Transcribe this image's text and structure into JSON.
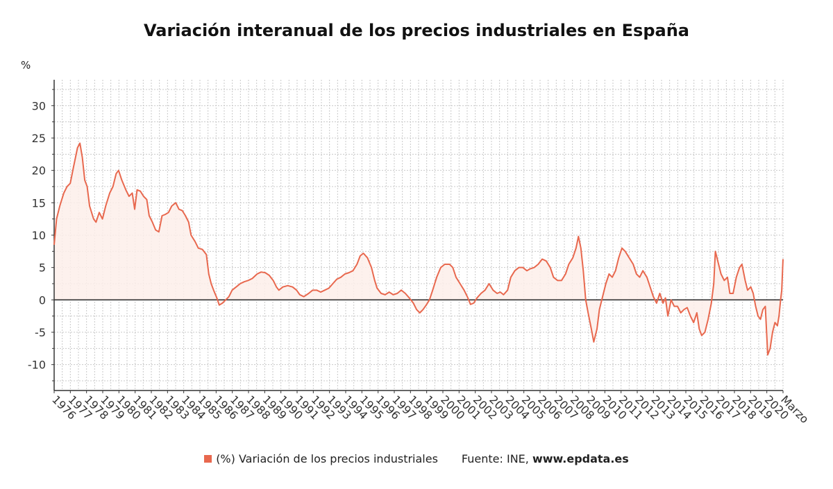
{
  "title": "Variación interanual de los precios industriales en España",
  "legend": {
    "series_label": "(%) Variación de los precios industriales",
    "source_prefix": "Fuente: INE,",
    "source_host": "www.epdata.es"
  },
  "colors": {
    "line": "#e8684e",
    "fill": "#fdeeea",
    "grid": "#c8c8c8",
    "zero_line": "#333333",
    "axis": "#333333"
  },
  "chart_data": {
    "type": "area",
    "title": "Variación interanual de los precios industriales en España",
    "ylabel": "%",
    "xlabel": "",
    "ylim": [
      -14,
      34
    ],
    "xlim": [
      1976.0,
      2021.25
    ],
    "y_ticks": [
      30,
      25,
      20,
      15,
      10,
      5,
      0,
      -5,
      -10
    ],
    "x_ticks": [
      "1976",
      "1977",
      "1978",
      "1979",
      "1980",
      "1981",
      "1982",
      "1983",
      "1984",
      "1985",
      "1986",
      "1987",
      "1988",
      "1989",
      "1990",
      "1991",
      "1992",
      "1993",
      "1994",
      "1995",
      "1996",
      "1997",
      "1998",
      "1999",
      "2000",
      "2001",
      "2002",
      "2003",
      "2004",
      "2005",
      "2006",
      "2007",
      "2008",
      "2009",
      "2010",
      "2011",
      "2012",
      "2013",
      "2014",
      "2015",
      "2016",
      "2017",
      "2018",
      "2019",
      "2020",
      "Marzo"
    ],
    "grid": "dotted, both axes",
    "legend_position": "bottom",
    "series": [
      {
        "name": "(%) Variación de los precios industriales",
        "points": [
          [
            1976.0,
            8.5
          ],
          [
            1976.15,
            12.5
          ],
          [
            1976.35,
            14.5
          ],
          [
            1976.6,
            16.5
          ],
          [
            1976.8,
            17.5
          ],
          [
            1977.0,
            18.0
          ],
          [
            1977.2,
            20.5
          ],
          [
            1977.45,
            23.5
          ],
          [
            1977.6,
            24.2
          ],
          [
            1977.75,
            22.0
          ],
          [
            1977.9,
            18.5
          ],
          [
            1978.05,
            17.5
          ],
          [
            1978.2,
            14.5
          ],
          [
            1978.45,
            12.5
          ],
          [
            1978.6,
            12.0
          ],
          [
            1978.8,
            13.5
          ],
          [
            1979.0,
            12.5
          ],
          [
            1979.2,
            14.5
          ],
          [
            1979.45,
            16.5
          ],
          [
            1979.65,
            17.5
          ],
          [
            1979.85,
            19.5
          ],
          [
            1980.0,
            20.0
          ],
          [
            1980.2,
            18.5
          ],
          [
            1980.45,
            17.0
          ],
          [
            1980.65,
            16.0
          ],
          [
            1980.85,
            16.5
          ],
          [
            1981.0,
            14.0
          ],
          [
            1981.15,
            17.0
          ],
          [
            1981.35,
            16.8
          ],
          [
            1981.55,
            16.0
          ],
          [
            1981.75,
            15.5
          ],
          [
            1981.9,
            13.0
          ],
          [
            1982.1,
            12.0
          ],
          [
            1982.3,
            10.8
          ],
          [
            1982.5,
            10.5
          ],
          [
            1982.7,
            13.0
          ],
          [
            1982.9,
            13.2
          ],
          [
            1983.1,
            13.5
          ],
          [
            1983.3,
            14.5
          ],
          [
            1983.55,
            15.0
          ],
          [
            1983.75,
            14.0
          ],
          [
            1983.95,
            13.8
          ],
          [
            1984.15,
            13.0
          ],
          [
            1984.35,
            12.0
          ],
          [
            1984.5,
            10.0
          ],
          [
            1984.75,
            9.0
          ],
          [
            1984.95,
            8.0
          ],
          [
            1985.2,
            7.8
          ],
          [
            1985.45,
            7.0
          ],
          [
            1985.6,
            4.0
          ],
          [
            1985.75,
            2.5
          ],
          [
            1985.9,
            1.5
          ],
          [
            1986.1,
            0.3
          ],
          [
            1986.25,
            -0.8
          ],
          [
            1986.45,
            -0.5
          ],
          [
            1986.65,
            0.0
          ],
          [
            1986.85,
            0.5
          ],
          [
            1987.05,
            1.5
          ],
          [
            1987.3,
            2.0
          ],
          [
            1987.55,
            2.5
          ],
          [
            1987.8,
            2.8
          ],
          [
            1988.05,
            3.0
          ],
          [
            1988.3,
            3.3
          ],
          [
            1988.6,
            4.0
          ],
          [
            1988.85,
            4.3
          ],
          [
            1989.1,
            4.2
          ],
          [
            1989.35,
            3.8
          ],
          [
            1989.6,
            3.0
          ],
          [
            1989.8,
            2.0
          ],
          [
            1989.95,
            1.5
          ],
          [
            1990.2,
            2.0
          ],
          [
            1990.5,
            2.2
          ],
          [
            1990.8,
            2.0
          ],
          [
            1991.05,
            1.5
          ],
          [
            1991.25,
            0.8
          ],
          [
            1991.5,
            0.5
          ],
          [
            1991.8,
            1.0
          ],
          [
            1992.05,
            1.5
          ],
          [
            1992.3,
            1.5
          ],
          [
            1992.55,
            1.2
          ],
          [
            1992.8,
            1.5
          ],
          [
            1993.05,
            1.8
          ],
          [
            1993.3,
            2.5
          ],
          [
            1993.55,
            3.2
          ],
          [
            1993.8,
            3.5
          ],
          [
            1994.05,
            4.0
          ],
          [
            1994.3,
            4.2
          ],
          [
            1994.55,
            4.5
          ],
          [
            1994.8,
            5.5
          ],
          [
            1995.0,
            6.8
          ],
          [
            1995.2,
            7.2
          ],
          [
            1995.45,
            6.5
          ],
          [
            1995.7,
            5.0
          ],
          [
            1995.9,
            3.0
          ],
          [
            1996.05,
            1.8
          ],
          [
            1996.3,
            1.0
          ],
          [
            1996.55,
            0.8
          ],
          [
            1996.8,
            1.2
          ],
          [
            1997.05,
            0.8
          ],
          [
            1997.3,
            1.0
          ],
          [
            1997.55,
            1.5
          ],
          [
            1997.8,
            1.0
          ],
          [
            1998.05,
            0.3
          ],
          [
            1998.3,
            -0.5
          ],
          [
            1998.5,
            -1.5
          ],
          [
            1998.7,
            -2.0
          ],
          [
            1998.9,
            -1.5
          ],
          [
            1999.1,
            -0.8
          ],
          [
            1999.3,
            0.0
          ],
          [
            1999.5,
            1.5
          ],
          [
            1999.75,
            3.5
          ],
          [
            2000.0,
            5.0
          ],
          [
            2000.25,
            5.5
          ],
          [
            2000.55,
            5.5
          ],
          [
            2000.75,
            5.0
          ],
          [
            2000.95,
            3.5
          ],
          [
            2001.2,
            2.5
          ],
          [
            2001.45,
            1.5
          ],
          [
            2001.65,
            0.5
          ],
          [
            2001.85,
            -0.7
          ],
          [
            2002.05,
            -0.5
          ],
          [
            2002.25,
            0.3
          ],
          [
            2002.5,
            1.0
          ],
          [
            2002.75,
            1.5
          ],
          [
            2003.0,
            2.5
          ],
          [
            2003.25,
            1.5
          ],
          [
            2003.5,
            1.0
          ],
          [
            2003.7,
            1.2
          ],
          [
            2003.9,
            0.8
          ],
          [
            2004.15,
            1.5
          ],
          [
            2004.35,
            3.5
          ],
          [
            2004.6,
            4.5
          ],
          [
            2004.85,
            5.0
          ],
          [
            2005.1,
            5.0
          ],
          [
            2005.35,
            4.5
          ],
          [
            2005.55,
            4.8
          ],
          [
            2005.8,
            5.0
          ],
          [
            2006.05,
            5.5
          ],
          [
            2006.3,
            6.3
          ],
          [
            2006.55,
            6.0
          ],
          [
            2006.8,
            5.0
          ],
          [
            2007.0,
            3.5
          ],
          [
            2007.25,
            3.0
          ],
          [
            2007.5,
            3.0
          ],
          [
            2007.75,
            4.0
          ],
          [
            2007.95,
            5.5
          ],
          [
            2008.2,
            6.5
          ],
          [
            2008.4,
            8.0
          ],
          [
            2008.55,
            9.8
          ],
          [
            2008.7,
            8.0
          ],
          [
            2008.85,
            4.5
          ],
          [
            2009.0,
            0.0
          ],
          [
            2009.15,
            -2.0
          ],
          [
            2009.35,
            -4.5
          ],
          [
            2009.5,
            -6.5
          ],
          [
            2009.7,
            -4.5
          ],
          [
            2009.85,
            -1.5
          ],
          [
            2010.05,
            0.5
          ],
          [
            2010.25,
            2.5
          ],
          [
            2010.45,
            4.0
          ],
          [
            2010.65,
            3.5
          ],
          [
            2010.85,
            4.5
          ],
          [
            2011.05,
            6.5
          ],
          [
            2011.25,
            8.0
          ],
          [
            2011.45,
            7.5
          ],
          [
            2011.7,
            6.5
          ],
          [
            2011.95,
            5.5
          ],
          [
            2012.15,
            4.0
          ],
          [
            2012.35,
            3.5
          ],
          [
            2012.55,
            4.5
          ],
          [
            2012.8,
            3.5
          ],
          [
            2013.0,
            2.0
          ],
          [
            2013.2,
            0.5
          ],
          [
            2013.4,
            -0.5
          ],
          [
            2013.6,
            1.0
          ],
          [
            2013.8,
            -0.5
          ],
          [
            2013.95,
            0.3
          ],
          [
            2014.1,
            -2.5
          ],
          [
            2014.3,
            0.0
          ],
          [
            2014.5,
            -1.0
          ],
          [
            2014.7,
            -1.0
          ],
          [
            2014.9,
            -2.0
          ],
          [
            2015.1,
            -1.5
          ],
          [
            2015.3,
            -1.2
          ],
          [
            2015.5,
            -2.5
          ],
          [
            2015.7,
            -3.5
          ],
          [
            2015.9,
            -2.0
          ],
          [
            2016.05,
            -4.5
          ],
          [
            2016.2,
            -5.5
          ],
          [
            2016.4,
            -5.0
          ],
          [
            2016.6,
            -3.0
          ],
          [
            2016.8,
            -0.5
          ],
          [
            2016.95,
            2.5
          ],
          [
            2017.05,
            7.5
          ],
          [
            2017.2,
            6.0
          ],
          [
            2017.4,
            4.0
          ],
          [
            2017.6,
            3.0
          ],
          [
            2017.8,
            3.5
          ],
          [
            2017.95,
            1.0
          ],
          [
            2018.15,
            1.0
          ],
          [
            2018.35,
            3.5
          ],
          [
            2018.55,
            5.0
          ],
          [
            2018.7,
            5.5
          ],
          [
            2018.9,
            3.0
          ],
          [
            2019.05,
            1.5
          ],
          [
            2019.25,
            2.0
          ],
          [
            2019.4,
            1.0
          ],
          [
            2019.55,
            -1.0
          ],
          [
            2019.7,
            -2.5
          ],
          [
            2019.85,
            -3.0
          ],
          [
            2020.0,
            -1.5
          ],
          [
            2020.15,
            -1.0
          ],
          [
            2020.3,
            -8.5
          ],
          [
            2020.45,
            -7.5
          ],
          [
            2020.6,
            -5.0
          ],
          [
            2020.75,
            -3.5
          ],
          [
            2020.9,
            -4.0
          ],
          [
            2021.0,
            -2.5
          ],
          [
            2021.1,
            0.0
          ],
          [
            2021.17,
            1.5
          ],
          [
            2021.25,
            6.3
          ]
        ]
      }
    ]
  }
}
